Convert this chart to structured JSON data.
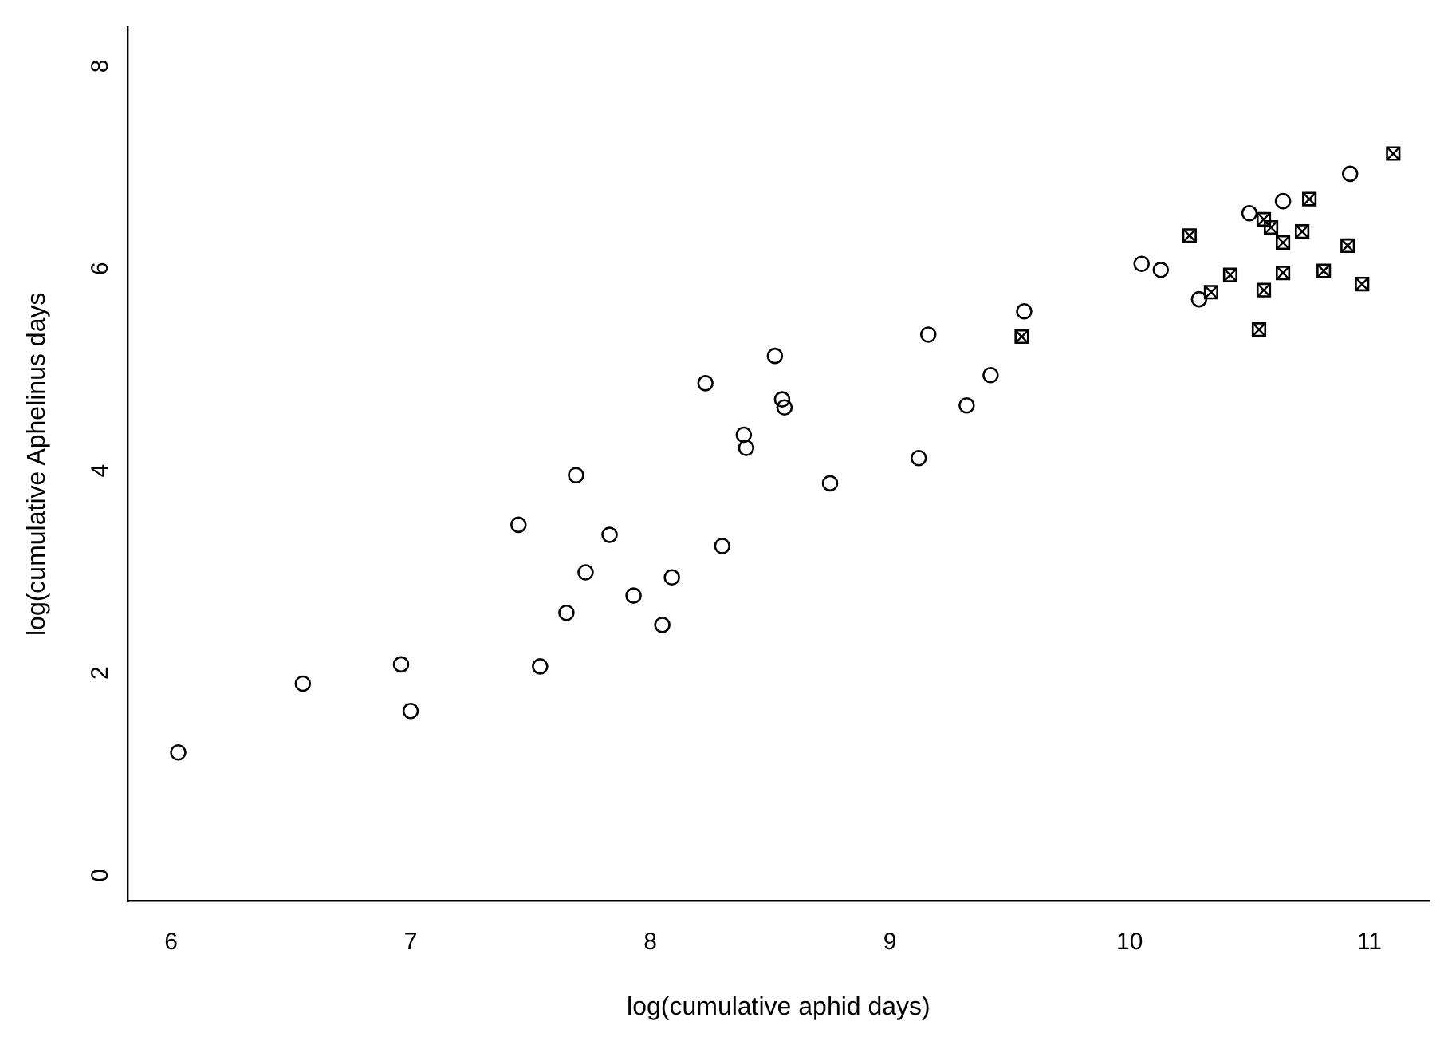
{
  "chart_data": {
    "type": "scatter",
    "xlabel": "log(cumulative aphid days)",
    "ylabel": "log(cumulative Aphelinus days",
    "xlim": [
      5.82,
      11.25
    ],
    "ylim": [
      -0.32,
      8.32
    ],
    "xticks": [
      6,
      7,
      8,
      9,
      10,
      11
    ],
    "yticks": [
      0,
      2,
      4,
      6,
      8
    ],
    "grid": false,
    "legend": false,
    "series": [
      {
        "color": "#000000",
        "marker": "circle",
        "x": [
          6.03,
          6.55,
          6.96,
          7.0,
          7.54,
          7.65,
          7.69,
          7.73,
          7.83,
          7.93,
          8.05,
          8.09,
          8.3,
          8.39,
          8.55,
          8.75
        ],
        "values": [
          1.15,
          1.83,
          2.02,
          1.56,
          2.0,
          2.53,
          3.89,
          2.93,
          3.3,
          2.7,
          2.41,
          2.88,
          3.19,
          4.29,
          4.64,
          3.81
        ]
      },
      {
        "color": "#000000",
        "marker": "circle",
        "x": [
          7.45,
          8.23,
          8.52,
          8.56,
          8.4,
          9.12,
          9.16,
          9.32,
          9.42,
          9.56,
          10.05,
          10.13,
          10.29,
          10.5,
          10.64,
          10.92
        ],
        "values": [
          3.4,
          4.8,
          5.07,
          4.56,
          4.16,
          4.06,
          5.28,
          4.58,
          4.88,
          5.51,
          5.98,
          5.92,
          5.63,
          6.48,
          6.6,
          6.87
        ]
      },
      {
        "color": "#000000",
        "marker": "square",
        "x": [
          9.55,
          10.25,
          10.34,
          10.42,
          10.54,
          10.56,
          10.56,
          10.59,
          10.64,
          10.64,
          10.72,
          10.75,
          10.81,
          10.91,
          10.97,
          11.1
        ],
        "values": [
          5.26,
          6.26,
          5.7,
          5.87,
          5.33,
          5.72,
          6.42,
          6.34,
          5.89,
          6.19,
          6.3,
          6.62,
          5.91,
          6.16,
          5.78,
          7.07
        ]
      }
    ]
  }
}
